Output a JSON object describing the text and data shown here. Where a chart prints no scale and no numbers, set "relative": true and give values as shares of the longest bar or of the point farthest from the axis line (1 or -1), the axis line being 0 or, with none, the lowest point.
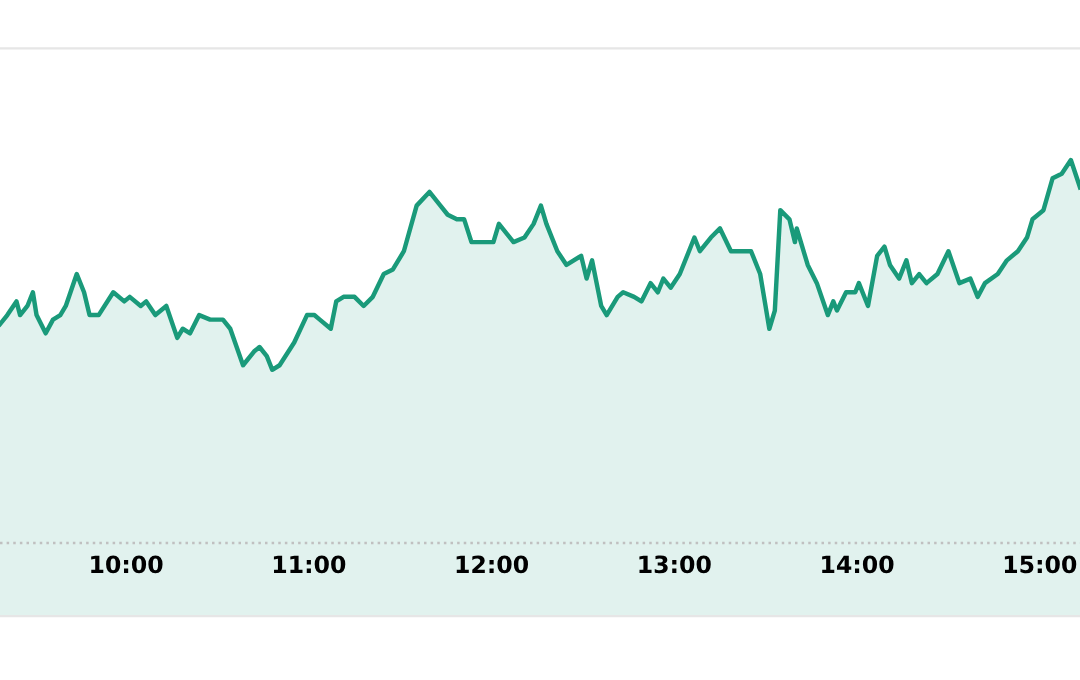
{
  "chart_data": {
    "type": "area",
    "relative": true,
    "x": [
      9.31,
      9.35,
      9.4,
      9.42,
      9.46,
      9.49,
      9.51,
      9.56,
      9.6,
      9.64,
      9.67,
      9.73,
      9.77,
      9.8,
      9.85,
      9.93,
      9.99,
      10.02,
      10.08,
      10.11,
      10.16,
      10.22,
      10.28,
      10.31,
      10.35,
      10.4,
      10.46,
      10.53,
      10.57,
      10.64,
      10.7,
      10.73,
      10.77,
      10.8,
      10.84,
      10.92,
      10.99,
      11.03,
      11.06,
      11.12,
      11.15,
      11.19,
      11.25,
      11.3,
      11.35,
      11.41,
      11.46,
      11.52,
      11.59,
      11.66,
      11.72,
      11.76,
      11.81,
      11.85,
      11.89,
      11.94,
      12.01,
      12.04,
      12.12,
      12.18,
      12.23,
      12.27,
      12.3,
      12.36,
      12.41,
      12.49,
      12.52,
      12.55,
      12.6,
      12.63,
      12.69,
      12.72,
      12.78,
      12.82,
      12.87,
      12.91,
      12.94,
      12.98,
      13.03,
      13.11,
      13.14,
      13.2,
      13.25,
      13.31,
      13.36,
      13.42,
      13.47,
      13.52,
      13.55,
      13.58,
      13.63,
      13.66,
      13.67,
      13.73,
      13.78,
      13.84,
      13.87,
      13.89,
      13.94,
      13.99,
      14.01,
      14.06,
      14.11,
      14.15,
      14.18,
      14.23,
      14.27,
      14.3,
      14.34,
      14.38,
      14.44,
      14.5,
      14.56,
      14.62,
      14.66,
      14.7,
      14.77,
      14.82,
      14.88,
      14.93,
      14.96,
      15.02,
      15.07,
      15.12,
      15.17,
      15.22
    ],
    "series": [
      {
        "color": "#1a9a7a",
        "values": [
          0.64,
          0.66,
          0.69,
          0.66,
          0.68,
          0.71,
          0.66,
          0.62,
          0.65,
          0.66,
          0.68,
          0.75,
          0.71,
          0.66,
          0.66,
          0.71,
          0.69,
          0.7,
          0.68,
          0.69,
          0.66,
          0.68,
          0.61,
          0.63,
          0.62,
          0.66,
          0.65,
          0.65,
          0.63,
          0.55,
          0.58,
          0.59,
          0.57,
          0.54,
          0.55,
          0.6,
          0.66,
          0.66,
          0.65,
          0.63,
          0.69,
          0.7,
          0.7,
          0.68,
          0.7,
          0.75,
          0.76,
          0.8,
          0.9,
          0.93,
          0.9,
          0.88,
          0.87,
          0.87,
          0.82,
          0.82,
          0.82,
          0.86,
          0.82,
          0.83,
          0.86,
          0.9,
          0.86,
          0.8,
          0.77,
          0.79,
          0.74,
          0.78,
          0.68,
          0.66,
          0.7,
          0.71,
          0.7,
          0.69,
          0.73,
          0.71,
          0.74,
          0.72,
          0.75,
          0.83,
          0.8,
          0.83,
          0.85,
          0.8,
          0.8,
          0.8,
          0.75,
          0.63,
          0.67,
          0.89,
          0.87,
          0.82,
          0.85,
          0.77,
          0.73,
          0.66,
          0.69,
          0.67,
          0.71,
          0.71,
          0.73,
          0.68,
          0.79,
          0.81,
          0.77,
          0.74,
          0.78,
          0.73,
          0.75,
          0.73,
          0.75,
          0.8,
          0.73,
          0.74,
          0.7,
          0.73,
          0.75,
          0.78,
          0.8,
          0.83,
          0.87,
          0.89,
          0.96,
          0.97,
          1.0,
          0.94
        ]
      }
    ],
    "xlim": [
      9.31,
      15.22
    ],
    "xticks": [
      {
        "value": 10,
        "label": "10:00"
      },
      {
        "value": 11,
        "label": "11:00"
      },
      {
        "value": 12,
        "label": "12:00"
      },
      {
        "value": 13,
        "label": "13:00"
      },
      {
        "value": 14,
        "label": "14:00"
      },
      {
        "value": 15,
        "label": "15:00"
      }
    ],
    "ref_lines": [
      {
        "axis": "y",
        "value": 0.16,
        "color": "#c0c0c0",
        "line_style": "dotted"
      }
    ],
    "grid": false,
    "legend": false
  }
}
